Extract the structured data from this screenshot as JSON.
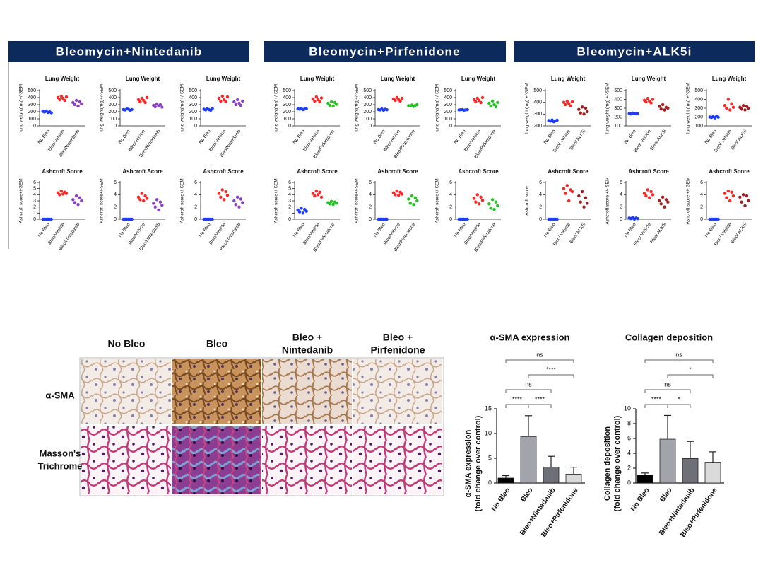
{
  "panels": [
    {
      "title": "Bleomycin+Nintedanib"
    },
    {
      "title": "Bleomycin+Pirfenidone"
    },
    {
      "title": "Bleomycin+ALK5i"
    }
  ],
  "histology": {
    "columns": [
      [
        "No Bleo"
      ],
      [
        "Bleo"
      ],
      [
        "Bleo +",
        "Nintedanib"
      ],
      [
        "Bleo +",
        "Pirfenidone"
      ]
    ],
    "rows": [
      [
        "α-SMA"
      ],
      [
        "Masson's",
        "Trichrome"
      ]
    ]
  },
  "chart_data": [
    {
      "type": "strip",
      "title": "Lung Weight",
      "ylabel": "lung weight(mg)+/-SEM",
      "categories": [
        "No Bleo",
        "Bleo/Vehicle",
        "Bleo/Nintedanib"
      ],
      "ylim": [
        0,
        500
      ],
      "yticks": [
        0,
        100,
        200,
        300,
        400,
        500
      ],
      "series": [
        {
          "color": "#1d3cff",
          "values": [
            205,
            195,
            210,
            190,
            200,
            185
          ]
        },
        {
          "color": "#ff2626",
          "values": [
            400,
            370,
            420,
            390,
            360,
            410
          ]
        },
        {
          "color": "#8a3fc4",
          "values": [
            330,
            300,
            360,
            280,
            340,
            310
          ]
        }
      ]
    },
    {
      "type": "strip",
      "title": "Lung Weight",
      "ylabel": "lung weight(mg)+/-SEM",
      "categories": [
        "No Bleo",
        "Bleo/Vehicle",
        "Bleo/Nintedanib"
      ],
      "ylim": [
        0,
        500
      ],
      "yticks": [
        0,
        100,
        200,
        300,
        400,
        500
      ],
      "series": [
        {
          "color": "#1d3cff",
          "values": [
            230,
            225,
            240,
            235,
            220,
            230
          ]
        },
        {
          "color": "#ff2626",
          "values": [
            370,
            340,
            390,
            360,
            330,
            400
          ]
        },
        {
          "color": "#8a3fc4",
          "values": [
            290,
            270,
            310,
            280,
            300,
            265
          ]
        }
      ]
    },
    {
      "type": "strip",
      "title": "Lung Weight",
      "ylabel": "lung weight(mg)+/-SEM",
      "categories": [
        "No Bleo",
        "Bleo/Vehicle",
        "Bleo/Nintedanib"
      ],
      "ylim": [
        0,
        500
      ],
      "yticks": [
        0,
        100,
        200,
        300,
        400,
        500
      ],
      "series": [
        {
          "color": "#1d3cff",
          "values": [
            235,
            225,
            240,
            230,
            220,
            245
          ]
        },
        {
          "color": "#ff2626",
          "values": [
            390,
            350,
            420,
            370,
            340,
            410
          ]
        },
        {
          "color": "#8a3fc4",
          "values": [
            340,
            300,
            370,
            320,
            290,
            350
          ]
        }
      ]
    },
    {
      "type": "strip",
      "title": "Ashcroft Score",
      "ylabel": "Ashcroft score+/-SEM",
      "categories": [
        "No Bleo",
        "Bleo/Vehicle",
        "Bleo/Nintedanib"
      ],
      "ylim": [
        0,
        6
      ],
      "yticks": [
        0,
        1,
        2,
        3,
        4,
        5,
        6
      ],
      "series": [
        {
          "color": "#1d3cff",
          "values": [
            0,
            0,
            0,
            0,
            0,
            0
          ]
        },
        {
          "color": "#ff2626",
          "values": [
            4.3,
            4.0,
            4.6,
            4.1,
            4.4,
            4.2
          ]
        },
        {
          "color": "#8a3fc4",
          "values": [
            3.2,
            2.7,
            3.8,
            2.4,
            3.5,
            3.0
          ]
        }
      ]
    },
    {
      "type": "strip",
      "title": "Ashcroft Score",
      "ylabel": "Ashcroft score+/-SEM",
      "categories": [
        "No Bleo",
        "Bleo/Vehicle",
        "Bleo/Nintedanib"
      ],
      "ylim": [
        0,
        6
      ],
      "yticks": [
        0,
        2,
        4,
        6
      ],
      "series": [
        {
          "color": "#1d3cff",
          "values": [
            0,
            0,
            0,
            0,
            0,
            0
          ]
        },
        {
          "color": "#ff2626",
          "values": [
            3.6,
            3.2,
            4.2,
            3.0,
            3.8,
            3.4
          ]
        },
        {
          "color": "#8a3fc4",
          "values": [
            2.6,
            2.0,
            3.2,
            1.5,
            2.8,
            2.3
          ]
        }
      ]
    },
    {
      "type": "strip",
      "title": "Ashcroft Score",
      "ylabel": "Ashcroft score+/-SEM",
      "categories": [
        "No Bleo",
        "Bleo/Vehicle",
        "Bleo/Nintedanib"
      ],
      "ylim": [
        0,
        6
      ],
      "yticks": [
        0,
        2,
        4,
        6
      ],
      "series": [
        {
          "color": "#1d3cff",
          "values": [
            0,
            0,
            0,
            0,
            0,
            0
          ]
        },
        {
          "color": "#ff2626",
          "values": [
            4.2,
            3.6,
            4.8,
            3.2,
            4.5,
            3.9
          ]
        },
        {
          "color": "#8a3fc4",
          "values": [
            3.0,
            2.4,
            3.6,
            2.0,
            3.3,
            2.7
          ]
        }
      ]
    },
    {
      "type": "strip",
      "title": "Lung Weight",
      "ylabel": "lung weight(mg)+/-SEM",
      "categories": [
        "No Bleo",
        "Bleo/Vehicle",
        "Bleo/Pirfenidone"
      ],
      "ylim": [
        0,
        500
      ],
      "yticks": [
        0,
        100,
        200,
        300,
        400,
        500
      ],
      "series": [
        {
          "color": "#1d3cff",
          "values": [
            240,
            235,
            245,
            230,
            238,
            242
          ]
        },
        {
          "color": "#ff2626",
          "values": [
            380,
            350,
            410,
            370,
            340,
            395
          ]
        },
        {
          "color": "#22c322",
          "values": [
            320,
            290,
            340,
            280,
            330,
            305
          ]
        }
      ]
    },
    {
      "type": "strip",
      "title": "Lung Weight",
      "ylabel": "lung weight(mg)+/-SEM",
      "categories": [
        "No Bleo",
        "Bleo/Vehicle",
        "Bleo/Pirfenidone"
      ],
      "ylim": [
        0,
        500
      ],
      "yticks": [
        0,
        100,
        200,
        300,
        400,
        500
      ],
      "series": [
        {
          "color": "#1d3cff",
          "values": [
            230,
            225,
            240,
            220,
            235,
            228
          ]
        },
        {
          "color": "#ff2626",
          "values": [
            380,
            360,
            400,
            370,
            350,
            390
          ]
        },
        {
          "color": "#22c322",
          "values": [
            285,
            280,
            295,
            275,
            290,
            300
          ]
        }
      ]
    },
    {
      "type": "strip",
      "title": "Lung Weight",
      "ylabel": "lung weight(mg)+/-SEM",
      "categories": [
        "No Bleo",
        "Bleo/Vehicle",
        "Bleo/Pirfenidone"
      ],
      "ylim": [
        0,
        500
      ],
      "yticks": [
        0,
        100,
        200,
        300,
        400,
        500
      ],
      "series": [
        {
          "color": "#1d3cff",
          "values": [
            225,
            228,
            230,
            222,
            226,
            229
          ]
        },
        {
          "color": "#ff2626",
          "values": [
            370,
            340,
            390,
            360,
            330,
            400
          ]
        },
        {
          "color": "#22c322",
          "values": [
            320,
            280,
            350,
            300,
            270,
            330
          ]
        }
      ]
    },
    {
      "type": "strip",
      "title": "Ashcroft Score",
      "ylabel": "Ashcroft score+/-SEM",
      "categories": [
        "No Bleo",
        "Bleo/Vehicle",
        "Bleo/Pirfenidone"
      ],
      "ylim": [
        0,
        6
      ],
      "yticks": [
        0,
        1,
        2,
        3,
        4,
        5,
        6
      ],
      "series": [
        {
          "color": "#1d3cff",
          "values": [
            1.5,
            1.2,
            1.8,
            1.0,
            1.6,
            1.3
          ]
        },
        {
          "color": "#ff2626",
          "values": [
            4.2,
            3.8,
            4.6,
            4.0,
            4.4,
            3.6
          ]
        },
        {
          "color": "#22c322",
          "values": [
            2.7,
            2.5,
            2.9,
            2.4,
            2.8,
            2.6
          ]
        }
      ]
    },
    {
      "type": "strip",
      "title": "Ashcroft Score",
      "ylabel": "Ashcroft score+/-SEM",
      "categories": [
        "No Bleo",
        "Bleo/Vehicle",
        "Bleo/Pirfenidone"
      ],
      "ylim": [
        0,
        6
      ],
      "yticks": [
        0,
        2,
        4,
        6
      ],
      "series": [
        {
          "color": "#1d3cff",
          "values": [
            0,
            0,
            0,
            0,
            0,
            0
          ]
        },
        {
          "color": "#ff2626",
          "values": [
            4.3,
            4.0,
            4.6,
            3.9,
            4.4,
            4.1
          ]
        },
        {
          "color": "#22c322",
          "values": [
            3.3,
            2.6,
            3.8,
            2.4,
            3.5,
            3.0
          ]
        }
      ]
    },
    {
      "type": "strip",
      "title": "Ashcroft Score",
      "ylabel": "Ashcroft score+/-SEM",
      "categories": [
        "No Bleo",
        "Bleo/Vehicle",
        "Bleo/Pirfenidone"
      ],
      "ylim": [
        0,
        6
      ],
      "yticks": [
        0,
        2,
        4,
        6
      ],
      "series": [
        {
          "color": "#1d3cff",
          "values": [
            0,
            0,
            0,
            0,
            0,
            0
          ]
        },
        {
          "color": "#ff2626",
          "values": [
            3.4,
            2.8,
            4.0,
            2.5,
            3.6,
            3.1
          ]
        },
        {
          "color": "#22c322",
          "values": [
            2.5,
            1.8,
            3.2,
            1.6,
            2.8,
            2.2
          ]
        }
      ]
    },
    {
      "type": "strip",
      "title": "Lung Weight",
      "ylabel": "lung weight (mg) +/-SEM",
      "categories": [
        "No Bleo",
        "Bleo/ Vehicle",
        "Bleo/ ALK5i"
      ],
      "ylim": [
        200,
        500
      ],
      "yticks": [
        200,
        300,
        400,
        500
      ],
      "series": [
        {
          "color": "#1d3cff",
          "values": [
            245,
            240,
            250,
            235,
            242,
            248
          ]
        },
        {
          "color": "#ff2626",
          "values": [
            400,
            380,
            410,
            390,
            370,
            405
          ]
        },
        {
          "color": "#a51c1c",
          "values": [
            340,
            310,
            360,
            300,
            350,
            320
          ]
        }
      ]
    },
    {
      "type": "strip",
      "title": "Lung Weight",
      "ylabel": "lung weight (mg) +/-SEM",
      "categories": [
        "No Bleo",
        "Bleo/ Vehicle",
        "Bleo/ ALK5i"
      ],
      "ylim": [
        100,
        500
      ],
      "yticks": [
        100,
        200,
        300,
        400,
        500
      ],
      "series": [
        {
          "color": "#1d3cff",
          "values": [
            240,
            235,
            245,
            238,
            242,
            236
          ]
        },
        {
          "color": "#ff2626",
          "values": [
            390,
            370,
            410,
            380,
            360,
            400
          ]
        },
        {
          "color": "#a51c1c",
          "values": [
            320,
            290,
            340,
            280,
            310,
            300
          ]
        }
      ]
    },
    {
      "type": "strip",
      "title": "Lung Weight",
      "ylabel": "lung weight (mg) +/-SEM",
      "categories": [
        "No Bleo",
        "Bleo/ Vehicle",
        "Bleo/ ALK5i"
      ],
      "ylim": [
        100,
        500
      ],
      "yticks": [
        100,
        200,
        300,
        400,
        500
      ],
      "series": [
        {
          "color": "#1d3cff",
          "values": [
            200,
            195,
            205,
            190,
            210,
            198
          ]
        },
        {
          "color": "#ff2626",
          "values": [
            330,
            300,
            400,
            280,
            350,
            310
          ]
        },
        {
          "color": "#a51c1c",
          "values": [
            310,
            290,
            330,
            280,
            320,
            300
          ]
        }
      ]
    },
    {
      "type": "strip",
      "title": "Ashcroft Score",
      "ylabel": "Ashcroft score",
      "categories": [
        "No Bleo",
        "Bleo/ Vehicle",
        "Bleo/ ALK5i"
      ],
      "ylim": [
        0,
        6
      ],
      "yticks": [
        0,
        2,
        4,
        6
      ],
      "series": [
        {
          "color": "#1d3cff",
          "values": [
            0,
            0,
            0,
            0,
            0,
            0
          ]
        },
        {
          "color": "#ff2626",
          "values": [
            5.0,
            4.2,
            5.5,
            3.0,
            4.8,
            4.5
          ]
        },
        {
          "color": "#a51c1c",
          "values": [
            3.8,
            2.8,
            4.5,
            2.0,
            3.5,
            2.6
          ]
        }
      ]
    },
    {
      "type": "strip",
      "title": "Ashcroft Score",
      "ylabel": "Ashcroft score +/- SEM",
      "categories": [
        "No Bleo",
        "Bleo/ Vehicle",
        "Bleo/ ALK5i"
      ],
      "ylim": [
        0,
        6
      ],
      "yticks": [
        0,
        2,
        4,
        6
      ],
      "series": [
        {
          "color": "#1d3cff",
          "values": [
            0.2,
            0.1,
            0.3,
            0,
            0.2,
            0.1
          ]
        },
        {
          "color": "#ff2626",
          "values": [
            4.2,
            3.8,
            4.8,
            3.5,
            4.5,
            4.0
          ]
        },
        {
          "color": "#a51c1c",
          "values": [
            3.0,
            2.5,
            3.6,
            2.0,
            3.2,
            2.8
          ]
        }
      ]
    },
    {
      "type": "strip",
      "title": "Ashcroft Score",
      "ylabel": "Ashcroft score +/- SEM",
      "categories": [
        "No Bleo",
        "Bleo/ Vehicle",
        "Bleo/ ALK5i"
      ],
      "ylim": [
        0,
        6
      ],
      "yticks": [
        0,
        2,
        4,
        6
      ],
      "series": [
        {
          "color": "#1d3cff",
          "values": [
            0,
            0,
            0,
            0,
            0,
            0
          ]
        },
        {
          "color": "#ff2626",
          "values": [
            4.2,
            3.5,
            4.6,
            3.0,
            4.4,
            3.8
          ]
        },
        {
          "color": "#a51c1c",
          "values": [
            3.6,
            2.8,
            4.0,
            2.2,
            3.8,
            3.0
          ]
        }
      ]
    },
    {
      "type": "bar",
      "title": "α-SMA expression",
      "ylabel": [
        "α-SMA expression",
        "(fold change over control)"
      ],
      "categories": [
        "No Bleo",
        "Bleo",
        "Bleo+Nintedanib",
        "Bleo+Pirfenidone"
      ],
      "values": [
        1.0,
        9.4,
        3.2,
        1.8
      ],
      "errors": [
        0.5,
        4.2,
        2.2,
        1.4
      ],
      "colors": [
        "#000000",
        "#a3a3ab",
        "#6f6f77",
        "#dadada"
      ],
      "ylim": [
        0,
        15
      ],
      "yticks": [
        0,
        5,
        10,
        15
      ],
      "annotations": [
        {
          "from": "No Bleo",
          "to": "Bleo",
          "label": "****"
        },
        {
          "from": "Bleo",
          "to": "Bleo+Nintedanib",
          "label": "****"
        },
        {
          "from": "No Bleo",
          "to": "Bleo+Nintedanib",
          "label": "ns"
        },
        {
          "from": "Bleo",
          "to": "Bleo+Pirfenidone",
          "label": "****"
        },
        {
          "from": "No Bleo",
          "to": "Bleo+Pirfenidone",
          "label": "ns"
        }
      ]
    },
    {
      "type": "bar",
      "title": "Collagen deposition",
      "ylabel": [
        "Collagen deposition",
        "(fold change over control)"
      ],
      "categories": [
        "No Bleo",
        "Bleo",
        "Bleo+Nintedanib",
        "Bleo+Pirfenidone"
      ],
      "values": [
        1.1,
        5.9,
        3.3,
        2.8
      ],
      "errors": [
        0.25,
        3.2,
        2.3,
        1.4
      ],
      "colors": [
        "#000000",
        "#a3a3ab",
        "#6f6f77",
        "#dadada"
      ],
      "ylim": [
        0,
        10
      ],
      "yticks": [
        0,
        2,
        4,
        6,
        8,
        10
      ],
      "annotations": [
        {
          "from": "No Bleo",
          "to": "Bleo",
          "label": "****"
        },
        {
          "from": "Bleo",
          "to": "Bleo+Nintedanib",
          "label": "*"
        },
        {
          "from": "No Bleo",
          "to": "Bleo+Nintedanib",
          "label": "ns"
        },
        {
          "from": "Bleo",
          "to": "Bleo+Pirfenidone",
          "label": "*"
        },
        {
          "from": "No Bleo",
          "to": "Bleo+Pirfenidone",
          "label": "ns"
        }
      ]
    }
  ]
}
